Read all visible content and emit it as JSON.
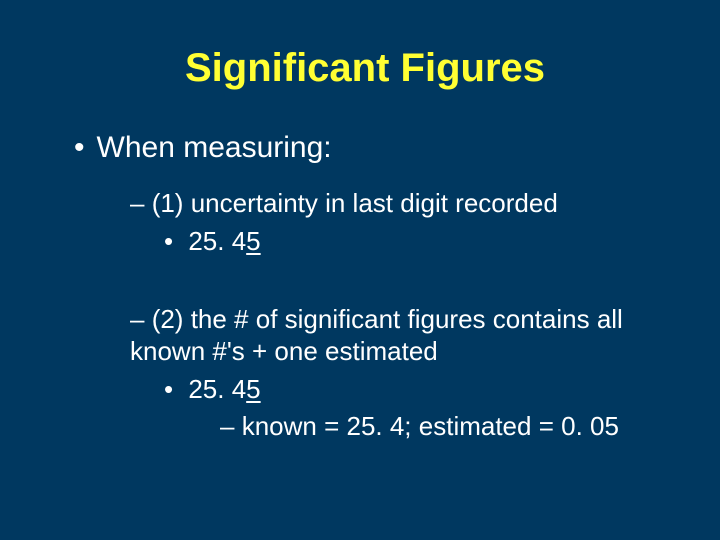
{
  "background_color": "#003860",
  "title_color": "#ffff33",
  "text_color": "#ffffff",
  "title_fontsize": 40,
  "body_fontsize": 26,
  "level1_fontsize": 30,
  "title": "Significant Figures",
  "b1": "When measuring:",
  "p1_dash": "–",
  "p1_text": " (1) uncertainty in last digit recorded",
  "ex1_pre": "25. 4",
  "ex1_u": "5",
  "p2_dash": "–",
  "p2_text": " (2) the # of significant figures contains all known #'s + one estimated",
  "ex2_pre": "25. 4",
  "ex2_u": "5",
  "kn_dash": "–",
  "kn_text": " known = 25. 4; estimated = 0. 05"
}
